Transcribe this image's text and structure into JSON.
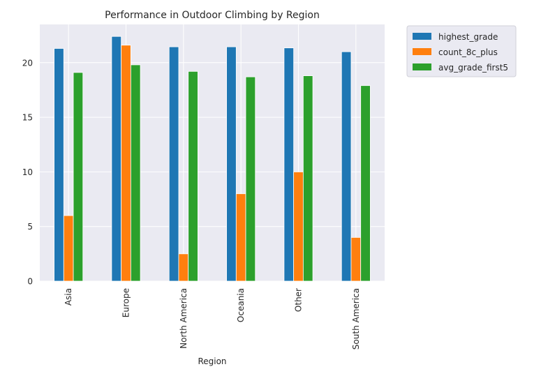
{
  "chart_data": {
    "type": "bar",
    "title": "Performance in Outdoor Climbing by Region",
    "xlabel": "Region",
    "ylabel": "",
    "categories": [
      "Asia",
      "Europe",
      "North America",
      "Oceania",
      "Other",
      "South America"
    ],
    "series": [
      {
        "name": "highest_grade",
        "color": "#1f77b4",
        "values": [
          21.3,
          22.4,
          21.45,
          21.45,
          21.35,
          21.0
        ]
      },
      {
        "name": "count_8c_plus",
        "color": "#ff7f0e",
        "values": [
          6,
          21.6,
          2.5,
          8,
          10,
          4
        ]
      },
      {
        "name": "avg_grade_first5",
        "color": "#2ca02c",
        "values": [
          19.1,
          19.8,
          19.2,
          18.7,
          18.8,
          17.9
        ]
      }
    ],
    "ylim": [
      0,
      23.5
    ],
    "yticks": [
      0,
      5,
      10,
      15,
      20
    ],
    "grid": true,
    "legend_position": "outside-top-right",
    "background": "#eaeaf2"
  }
}
